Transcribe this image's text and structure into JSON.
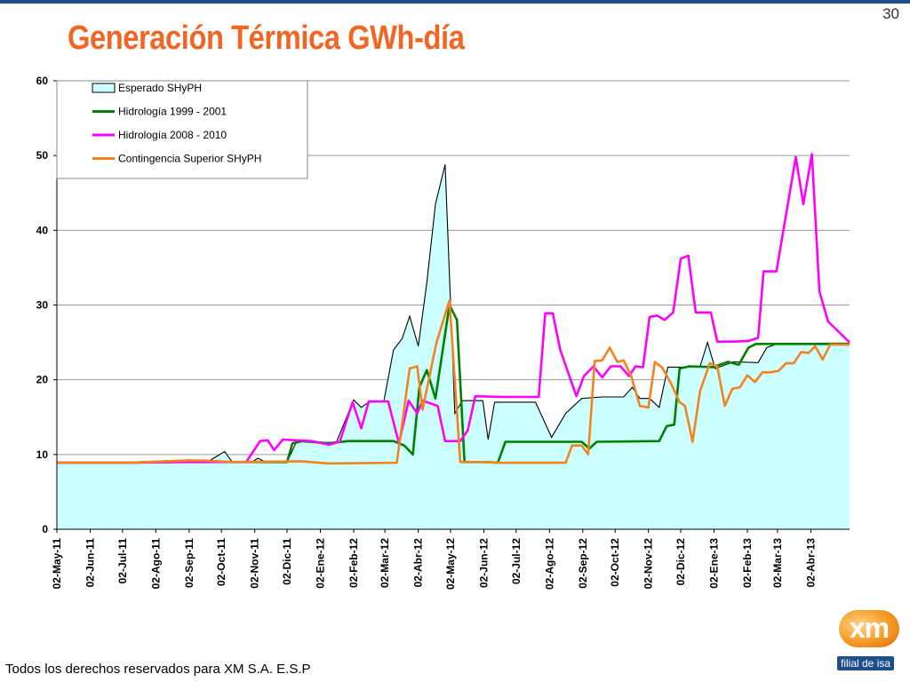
{
  "slide": {
    "page_number": "30",
    "footer": "Todos los derechos reservados para XM S.A. E.S.P",
    "logo_text": "xm",
    "logo_subtext": "filial de isa",
    "colors": {
      "title": "#f26522",
      "band": "#1f4e8c"
    }
  },
  "chart_data": {
    "type": "line",
    "title": "Generación Térmica GWh-día",
    "xlabel": "",
    "ylabel": "",
    "ylim": [
      0,
      60
    ],
    "yticks": [
      "0",
      "10",
      "20",
      "30",
      "40",
      "50",
      "60"
    ],
    "grid": true,
    "legend_position": "top-left",
    "x_tick_labels": [
      "02-May-11",
      "02-Jun-11",
      "02-Jul-11",
      "02-Ago-11",
      "02-Sep-11",
      "02-Oct-11",
      "02-Nov-11",
      "02-Dic-11",
      "02-Ene-12",
      "02-Feb-12",
      "02-Mar-12",
      "02-Abr-12",
      "02-May-12",
      "02-Jun-12",
      "02-Jul-12",
      "02-Ago-12",
      "02-Sep-12",
      "02-Oct-12",
      "02-Nov-12",
      "02-Dic-12",
      "02-Ene-13",
      "02-Feb-13",
      "02-Mar-13",
      "02-Abr-13"
    ],
    "x_range": [
      "2011-05-02",
      "2013-05-08"
    ],
    "series": [
      {
        "name": "Esperado SHyPH",
        "kind": "area",
        "color": "#ccffff",
        "stroke": "#000000",
        "points": [
          [
            "2011-05-02",
            8.9
          ],
          [
            "2011-07-10",
            8.9
          ],
          [
            "2011-09-01",
            9.2
          ],
          [
            "2011-09-20",
            9.1
          ],
          [
            "2011-10-05",
            10.4
          ],
          [
            "2011-10-12",
            9.0
          ],
          [
            "2011-10-30",
            9.0
          ],
          [
            "2011-11-05",
            9.5
          ],
          [
            "2011-11-12",
            9.0
          ],
          [
            "2011-12-02",
            9.0
          ],
          [
            "2011-12-10",
            11.5
          ],
          [
            "2011-12-18",
            11.8
          ],
          [
            "2012-01-08",
            11.6
          ],
          [
            "2012-01-17",
            11.7
          ],
          [
            "2012-01-25",
            14.5
          ],
          [
            "2012-02-02",
            17.3
          ],
          [
            "2012-02-09",
            16.3
          ],
          [
            "2012-02-16",
            17.0
          ],
          [
            "2012-03-01",
            17.1
          ],
          [
            "2012-03-10",
            24.0
          ],
          [
            "2012-03-18",
            25.5
          ],
          [
            "2012-03-25",
            28.5
          ],
          [
            "2012-04-02",
            24.5
          ],
          [
            "2012-04-10",
            33.0
          ],
          [
            "2012-04-18",
            43.5
          ],
          [
            "2012-04-27",
            48.8
          ],
          [
            "2012-05-06",
            15.5
          ],
          [
            "2012-05-13",
            17.2
          ],
          [
            "2012-06-01",
            17.2
          ],
          [
            "2012-06-06",
            12.0
          ],
          [
            "2012-06-12",
            17.0
          ],
          [
            "2012-07-20",
            17.0
          ],
          [
            "2012-08-04",
            12.3
          ],
          [
            "2012-08-17",
            15.5
          ],
          [
            "2012-09-01",
            17.5
          ],
          [
            "2012-09-20",
            17.7
          ],
          [
            "2012-10-10",
            17.7
          ],
          [
            "2012-10-18",
            19.0
          ],
          [
            "2012-10-25",
            17.5
          ],
          [
            "2012-11-03",
            17.5
          ],
          [
            "2012-11-12",
            16.3
          ],
          [
            "2012-11-20",
            21.7
          ],
          [
            "2012-12-05",
            21.7
          ],
          [
            "2012-12-20",
            21.8
          ],
          [
            "2012-12-27",
            25.0
          ],
          [
            "2013-01-03",
            21.5
          ],
          [
            "2013-01-20",
            22.4
          ],
          [
            "2013-02-12",
            22.3
          ],
          [
            "2013-02-20",
            24.3
          ],
          [
            "2013-03-01",
            24.8
          ],
          [
            "2013-04-10",
            24.9
          ],
          [
            "2013-05-08",
            24.9
          ]
        ]
      },
      {
        "name": "Hidrología 1999 - 2001",
        "kind": "line",
        "color": "#008000",
        "points": [
          [
            "2011-05-02",
            8.9
          ],
          [
            "2011-07-10",
            8.9
          ],
          [
            "2011-09-01",
            9.2
          ],
          [
            "2011-10-12",
            9.0
          ],
          [
            "2011-12-02",
            9.0
          ],
          [
            "2011-12-07",
            11.5
          ],
          [
            "2011-12-15",
            11.8
          ],
          [
            "2012-01-10",
            11.5
          ],
          [
            "2012-01-28",
            11.8
          ],
          [
            "2012-03-10",
            11.8
          ],
          [
            "2012-03-20",
            11.2
          ],
          [
            "2012-03-28",
            10.0
          ],
          [
            "2012-04-03",
            19.0
          ],
          [
            "2012-04-10",
            21.3
          ],
          [
            "2012-04-18",
            17.5
          ],
          [
            "2012-05-01",
            30.0
          ],
          [
            "2012-05-08",
            28.0
          ],
          [
            "2012-05-15",
            9.0
          ],
          [
            "2012-06-05",
            9.0
          ],
          [
            "2012-06-15",
            8.9
          ],
          [
            "2012-06-22",
            11.7
          ],
          [
            "2012-09-01",
            11.7
          ],
          [
            "2012-09-08",
            10.8
          ],
          [
            "2012-09-15",
            11.7
          ],
          [
            "2012-11-12",
            11.8
          ],
          [
            "2012-11-19",
            13.8
          ],
          [
            "2012-11-26",
            14.0
          ],
          [
            "2012-12-01",
            21.5
          ],
          [
            "2012-12-10",
            21.8
          ],
          [
            "2013-01-01",
            21.7
          ],
          [
            "2013-01-15",
            22.4
          ],
          [
            "2013-01-25",
            22.0
          ],
          [
            "2013-02-03",
            24.3
          ],
          [
            "2013-02-10",
            24.8
          ],
          [
            "2013-05-08",
            24.8
          ]
        ]
      },
      {
        "name": "Hidrología 2008 - 2010",
        "kind": "line",
        "color": "#ff00ff",
        "points": [
          [
            "2011-05-02",
            8.9
          ],
          [
            "2011-07-10",
            8.9
          ],
          [
            "2011-09-01",
            9.0
          ],
          [
            "2011-10-25",
            9.0
          ],
          [
            "2011-11-07",
            11.8
          ],
          [
            "2011-11-14",
            11.9
          ],
          [
            "2011-11-20",
            10.6
          ],
          [
            "2011-11-28",
            12.0
          ],
          [
            "2011-12-25",
            11.8
          ],
          [
            "2012-01-10",
            11.3
          ],
          [
            "2012-01-20",
            11.7
          ],
          [
            "2012-02-01",
            17.0
          ],
          [
            "2012-02-09",
            13.5
          ],
          [
            "2012-02-16",
            17.1
          ],
          [
            "2012-03-05",
            17.1
          ],
          [
            "2012-03-15",
            11.5
          ],
          [
            "2012-03-24",
            17.2
          ],
          [
            "2012-04-01",
            15.5
          ],
          [
            "2012-04-06",
            17.2
          ],
          [
            "2012-04-20",
            16.5
          ],
          [
            "2012-04-27",
            11.8
          ],
          [
            "2012-05-11",
            11.8
          ],
          [
            "2012-05-18",
            13.2
          ],
          [
            "2012-05-25",
            17.8
          ],
          [
            "2012-06-20",
            17.7
          ],
          [
            "2012-07-23",
            17.7
          ],
          [
            "2012-07-29",
            28.9
          ],
          [
            "2012-08-05",
            28.9
          ],
          [
            "2012-08-12",
            24.0
          ],
          [
            "2012-08-27",
            17.8
          ],
          [
            "2012-09-03",
            20.5
          ],
          [
            "2012-09-12",
            21.8
          ],
          [
            "2012-09-20",
            20.3
          ],
          [
            "2012-09-28",
            21.8
          ],
          [
            "2012-10-07",
            21.8
          ],
          [
            "2012-10-15",
            20.5
          ],
          [
            "2012-10-21",
            21.8
          ],
          [
            "2012-10-28",
            21.7
          ],
          [
            "2012-11-03",
            28.4
          ],
          [
            "2012-11-10",
            28.6
          ],
          [
            "2012-11-17",
            28.0
          ],
          [
            "2012-11-25",
            29.0
          ],
          [
            "2012-12-02",
            36.2
          ],
          [
            "2012-12-09",
            36.6
          ],
          [
            "2012-12-16",
            29.0
          ],
          [
            "2012-12-30",
            29.0
          ],
          [
            "2013-01-05",
            25.1
          ],
          [
            "2013-01-20",
            25.1
          ],
          [
            "2013-02-03",
            25.2
          ],
          [
            "2013-02-12",
            25.6
          ],
          [
            "2013-02-17",
            34.5
          ],
          [
            "2013-03-01",
            34.5
          ],
          [
            "2013-03-19",
            49.8
          ],
          [
            "2013-03-26",
            43.5
          ],
          [
            "2013-04-03",
            50.2
          ],
          [
            "2013-04-10",
            31.8
          ],
          [
            "2013-04-18",
            27.8
          ],
          [
            "2013-05-08",
            25.0
          ]
        ]
      },
      {
        "name": "Contingencia Superior SHyPH",
        "kind": "line",
        "color": "#f58220",
        "points": [
          [
            "2011-05-02",
            8.9
          ],
          [
            "2011-07-10",
            8.9
          ],
          [
            "2011-09-01",
            9.2
          ],
          [
            "2011-09-15",
            9.2
          ],
          [
            "2011-10-12",
            9.0
          ],
          [
            "2011-12-15",
            9.1
          ],
          [
            "2012-01-10",
            8.8
          ],
          [
            "2012-03-13",
            8.9
          ],
          [
            "2012-03-25",
            21.5
          ],
          [
            "2012-04-01",
            21.8
          ],
          [
            "2012-04-06",
            16.0
          ],
          [
            "2012-04-19",
            25.0
          ],
          [
            "2012-05-01",
            30.6
          ],
          [
            "2012-05-11",
            9.0
          ],
          [
            "2012-06-01",
            9.0
          ],
          [
            "2012-06-15",
            8.9
          ],
          [
            "2012-08-17",
            8.9
          ],
          [
            "2012-08-23",
            11.2
          ],
          [
            "2012-09-01",
            11.2
          ],
          [
            "2012-09-07",
            10.0
          ],
          [
            "2012-09-13",
            22.5
          ],
          [
            "2012-09-20",
            22.6
          ],
          [
            "2012-09-27",
            24.3
          ],
          [
            "2012-10-04",
            22.4
          ],
          [
            "2012-10-10",
            22.6
          ],
          [
            "2012-10-17",
            20.5
          ],
          [
            "2012-10-25",
            16.5
          ],
          [
            "2012-11-02",
            16.3
          ],
          [
            "2012-11-08",
            22.4
          ],
          [
            "2012-11-15",
            21.6
          ],
          [
            "2012-11-23",
            19.5
          ],
          [
            "2012-12-01",
            17.0
          ],
          [
            "2012-12-06",
            16.5
          ],
          [
            "2012-12-13",
            11.7
          ],
          [
            "2012-12-20",
            18.5
          ],
          [
            "2012-12-29",
            22.2
          ],
          [
            "2013-01-05",
            21.8
          ],
          [
            "2013-01-12",
            16.5
          ],
          [
            "2013-01-19",
            18.8
          ],
          [
            "2013-01-26",
            19.0
          ],
          [
            "2013-02-02",
            20.6
          ],
          [
            "2013-02-09",
            19.7
          ],
          [
            "2013-02-16",
            21.0
          ],
          [
            "2013-02-23",
            21.0
          ],
          [
            "2013-03-03",
            21.2
          ],
          [
            "2013-03-10",
            22.2
          ],
          [
            "2013-03-17",
            22.2
          ],
          [
            "2013-03-24",
            23.7
          ],
          [
            "2013-03-31",
            23.6
          ],
          [
            "2013-04-06",
            24.5
          ],
          [
            "2013-04-13",
            22.7
          ],
          [
            "2013-04-20",
            24.7
          ],
          [
            "2013-05-08",
            24.7
          ]
        ]
      }
    ]
  }
}
